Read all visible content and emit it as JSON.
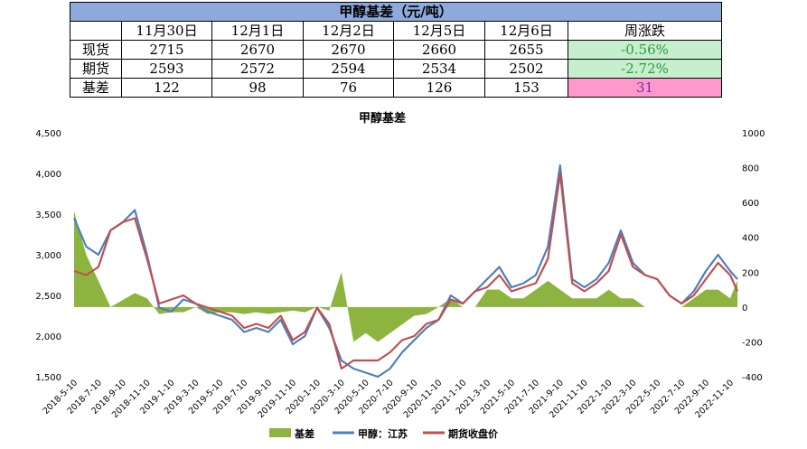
{
  "table": {
    "title": "甲醇基差（元/吨）",
    "columns": [
      "",
      "11月30日",
      "12月1日",
      "12月2日",
      "12月5日",
      "12月6日",
      "周涨跌"
    ],
    "rows": [
      {
        "label": "现货",
        "values": [
          "2715",
          "2670",
          "2670",
          "2660",
          "2655"
        ],
        "change": "-0.56%"
      },
      {
        "label": "期货",
        "values": [
          "2593",
          "2572",
          "2594",
          "2534",
          "2502"
        ],
        "change": "-2.72%"
      },
      {
        "label": "基差",
        "values": [
          "122",
          "98",
          "76",
          "126",
          "153"
        ],
        "change": "31"
      }
    ]
  },
  "colors": {
    "basis": "#8db43f",
    "spot": "#4e7fc0",
    "futures": "#c0504d",
    "header": "#8ea9db"
  },
  "chart_data": {
    "type": "line",
    "title": "甲醇基差",
    "x_tick_labels": [
      "2018-5-10",
      "2018-7-10",
      "2018-9-10",
      "2018-11-10",
      "2019-1-10",
      "2019-3-10",
      "2019-5-10",
      "2019-7-10",
      "2019-9-10",
      "2019-11-10",
      "2020-1-10",
      "2020-3-10",
      "2020-5-10",
      "2020-7-10",
      "2020-9-10",
      "2020-11-10",
      "2021-1-10",
      "2021-3-10",
      "2021-5-10",
      "2021-7-10",
      "2021-9-10",
      "2021-11-10",
      "2022-1-10",
      "2022-3-10",
      "2022-5-10",
      "2022-7-10",
      "2022-9-10",
      "2022-11-10"
    ],
    "y_left": {
      "min": 1500,
      "max": 4500,
      "ticks": [
        "1,500",
        "2,000",
        "2,500",
        "3,000",
        "3,500",
        "4,000",
        "4,500"
      ]
    },
    "y_right": {
      "min": -400,
      "max": 1000,
      "ticks": [
        "-400",
        "-200",
        "0",
        "200",
        "400",
        "600",
        "800",
        "1000"
      ]
    },
    "legend": [
      "基差",
      "甲醇：江苏",
      "期货收盘价"
    ],
    "legend_position": "bottom",
    "series": [
      {
        "name": "甲醇：江苏",
        "axis": "left",
        "type": "line",
        "x": [
          0,
          0.5,
          1,
          1.5,
          2,
          2.5,
          3,
          3.5,
          4,
          4.5,
          5,
          5.5,
          6,
          6.5,
          7,
          7.5,
          8,
          8.5,
          9,
          9.5,
          10,
          10.5,
          11,
          11.5,
          12,
          12.5,
          13,
          13.5,
          14,
          14.5,
          15,
          15.5,
          16,
          16.5,
          17,
          17.5,
          18,
          18.5,
          19,
          19.5,
          20,
          20.5,
          21,
          21.5,
          22,
          22.5,
          23,
          23.5,
          24,
          24.5,
          25,
          25.5,
          26,
          26.5,
          27,
          27.3
        ],
        "y": [
          3450,
          3100,
          3000,
          3300,
          3400,
          3550,
          3000,
          2350,
          2300,
          2450,
          2400,
          2300,
          2250,
          2200,
          2050,
          2100,
          2050,
          2200,
          1900,
          2000,
          2350,
          2100,
          1700,
          1600,
          1550,
          1500,
          1600,
          1800,
          1950,
          2100,
          2200,
          2500,
          2400,
          2550,
          2700,
          2850,
          2600,
          2650,
          2750,
          3100,
          4100,
          2700,
          2600,
          2700,
          2900,
          3300,
          2900,
          2750,
          2700,
          2500,
          2400,
          2550,
          2800,
          3000,
          2800,
          2700
        ]
      },
      {
        "name": "期货收盘价",
        "axis": "left",
        "type": "line",
        "x": [
          0,
          0.5,
          1,
          1.5,
          2,
          2.5,
          3,
          3.5,
          4,
          4.5,
          5,
          5.5,
          6,
          6.5,
          7,
          7.5,
          8,
          8.5,
          9,
          9.5,
          10,
          10.5,
          11,
          11.5,
          12,
          12.5,
          13,
          13.5,
          14,
          14.5,
          15,
          15.5,
          16,
          16.5,
          17,
          17.5,
          18,
          18.5,
          19,
          19.5,
          20,
          20.5,
          21,
          21.5,
          22,
          22.5,
          23,
          23.5,
          24,
          24.5,
          25,
          25.5,
          26,
          26.5,
          27,
          27.3
        ],
        "y": [
          2800,
          2750,
          2850,
          3300,
          3400,
          3450,
          2950,
          2400,
          2450,
          2500,
          2400,
          2350,
          2300,
          2250,
          2100,
          2150,
          2100,
          2250,
          1950,
          2050,
          2350,
          2150,
          1600,
          1700,
          1700,
          1700,
          1800,
          1950,
          2000,
          2150,
          2200,
          2450,
          2400,
          2550,
          2600,
          2750,
          2550,
          2600,
          2650,
          2950,
          4000,
          2650,
          2550,
          2650,
          2800,
          3250,
          2850,
          2750,
          2700,
          2500,
          2400,
          2500,
          2700,
          2900,
          2750,
          2550
        ]
      },
      {
        "name": "基差",
        "axis": "right",
        "type": "area",
        "x": [
          0,
          0.5,
          1,
          1.5,
          2,
          2.5,
          3,
          3.5,
          4,
          4.5,
          5,
          5.5,
          6,
          6.5,
          7,
          7.5,
          8,
          8.5,
          9,
          9.5,
          10,
          10.5,
          11,
          11.5,
          12,
          12.5,
          13,
          13.5,
          14,
          14.5,
          15,
          15.5,
          16,
          16.5,
          17,
          17.5,
          18,
          18.5,
          19,
          19.5,
          20,
          20.5,
          21,
          21.5,
          22,
          22.5,
          23,
          23.5,
          24,
          24.5,
          25,
          25.5,
          26,
          26.5,
          27,
          27.3
        ],
        "y": [
          550,
          300,
          150,
          0,
          40,
          80,
          50,
          -40,
          -30,
          -30,
          0,
          -40,
          -30,
          -30,
          -40,
          -30,
          -40,
          -30,
          -20,
          -30,
          0,
          -20,
          200,
          -200,
          -150,
          -200,
          -150,
          -100,
          -50,
          -40,
          0,
          50,
          0,
          0,
          100,
          100,
          50,
          50,
          100,
          150,
          100,
          50,
          50,
          50,
          100,
          50,
          50,
          0,
          0,
          0,
          0,
          50,
          100,
          100,
          50,
          153
        ]
      }
    ]
  }
}
